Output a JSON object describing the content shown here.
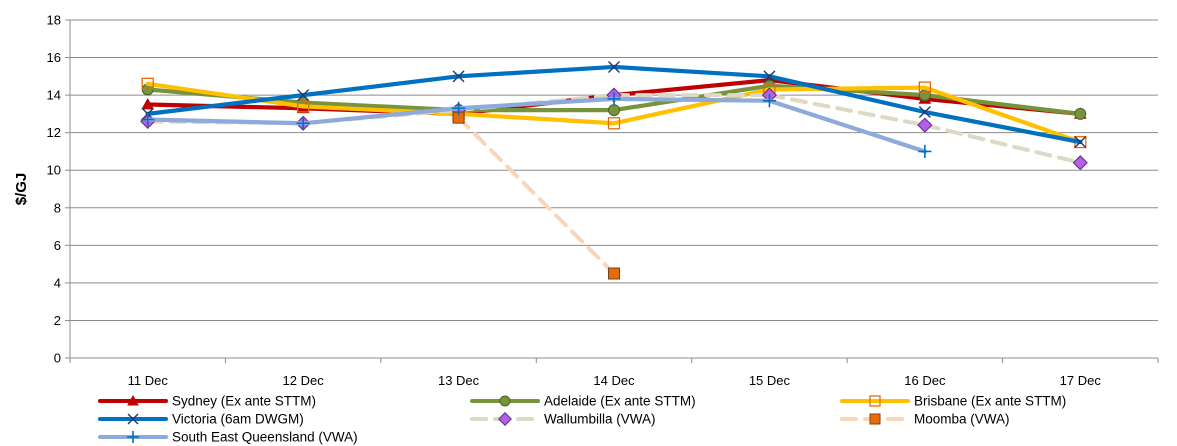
{
  "chart_data": {
    "type": "line",
    "categories": [
      "11 Dec",
      "12 Dec",
      "13 Dec",
      "14 Dec",
      "15 Dec",
      "16 Dec",
      "17 Dec"
    ],
    "ylabel": "$/GJ",
    "xlabel": "",
    "ylim": [
      0,
      18
    ],
    "yticks": [
      0,
      2,
      4,
      6,
      8,
      10,
      12,
      14,
      16,
      18
    ],
    "grid": "horizontal",
    "legend_position": "bottom",
    "series": [
      {
        "name": "Sydney (Ex ante STTM)",
        "color": "#c00000",
        "dash": "solid",
        "marker": "triangle",
        "values": [
          13.5,
          13.3,
          13.0,
          14.0,
          14.8,
          13.8,
          13.0
        ]
      },
      {
        "name": "Adelaide (Ex ante STTM)",
        "color": "#77933c",
        "dash": "solid",
        "marker": "circle",
        "values": [
          14.3,
          13.6,
          13.2,
          13.2,
          14.5,
          14.0,
          13.0
        ]
      },
      {
        "name": "Brisbane (Ex ante STTM)",
        "color": "#ffc000",
        "dash": "solid",
        "marker": "square-open",
        "values": [
          14.6,
          13.4,
          13.0,
          12.5,
          14.3,
          14.4,
          11.5
        ]
      },
      {
        "name": "Victoria (6am DWGM)",
        "color": "#0070c0",
        "dash": "solid",
        "marker": "x",
        "values": [
          13.0,
          14.0,
          15.0,
          15.5,
          15.0,
          13.1,
          11.5
        ]
      },
      {
        "name": "Wallumbilla (VWA)",
        "color": "#ddd9c3",
        "dash": "dash",
        "marker": "diamond",
        "values": [
          12.6,
          12.5,
          13.2,
          14.0,
          14.0,
          12.4,
          10.4
        ]
      },
      {
        "name": "Moomba (VWA)",
        "color": "#fcd5b5",
        "dash": "dash",
        "marker": "square-filled",
        "values": [
          null,
          null,
          12.8,
          4.5,
          null,
          null,
          null
        ]
      },
      {
        "name": "South East Queensland (VWA)",
        "color": "#8eaadb",
        "dash": "solid",
        "marker": "plus",
        "values": [
          12.7,
          12.5,
          13.3,
          13.8,
          13.7,
          11.0,
          null
        ]
      }
    ]
  }
}
